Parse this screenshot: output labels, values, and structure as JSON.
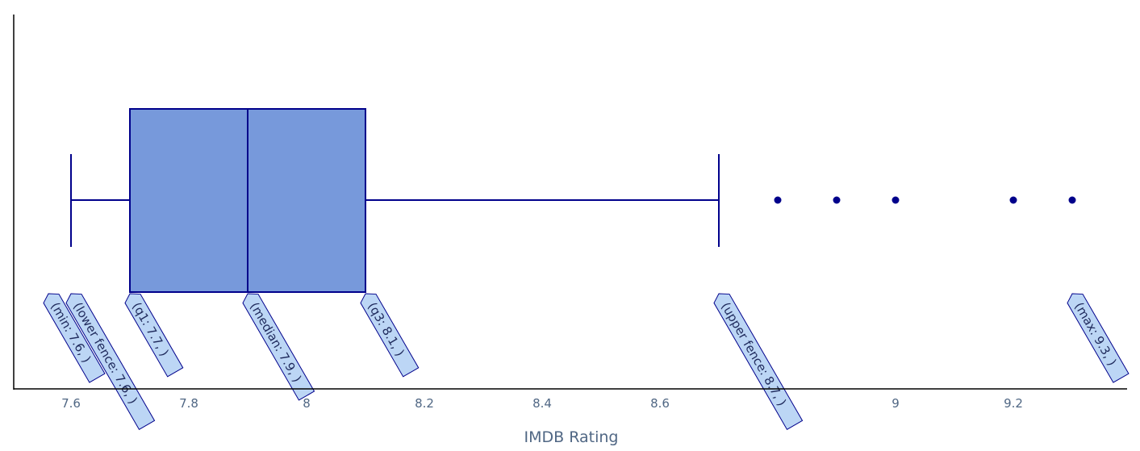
{
  "chart_data": {
    "type": "box",
    "orientation": "horizontal",
    "xlabel": "IMDB Rating",
    "xlim": [
      7.5,
      9.4
    ],
    "xticks": [
      7.6,
      7.8,
      8,
      8.2,
      8.4,
      8.6,
      9,
      9.2
    ],
    "xtick_labels": [
      "7.6",
      "7.8",
      "8",
      "8.2",
      "8.4",
      "8.6",
      "9",
      "9.2"
    ],
    "grid": false,
    "box": {
      "min": 7.6,
      "lower_fence": 7.6,
      "q1": 7.7,
      "median": 7.9,
      "q3": 8.1,
      "upper_fence": 8.7,
      "max": 9.3
    },
    "outliers": [
      8.8,
      8.9,
      9.0,
      9.2,
      9.3
    ],
    "hover_labels": [
      {
        "key": "min",
        "value": 7.6,
        "text": "(min: 7.6, )"
      },
      {
        "key": "lower_fence",
        "value": 7.6,
        "text": "(lower fence: 7.6, )"
      },
      {
        "key": "q1",
        "value": 7.7,
        "text": "(q1: 7.7, )"
      },
      {
        "key": "median",
        "value": 7.9,
        "text": "(median: 7.9, )"
      },
      {
        "key": "q3",
        "value": 8.1,
        "text": "(q3: 8.1, )"
      },
      {
        "key": "upper_fence",
        "value": 8.7,
        "text": "(upper fence: 8.7, )"
      },
      {
        "key": "max",
        "value": 9.3,
        "text": "(max: 9.3, )"
      }
    ],
    "colors": {
      "box_fill": "#7799db",
      "line": "#00008b",
      "label_fill": "#bcd6f5",
      "axis": "#000000",
      "tick_text": "#506784"
    }
  }
}
